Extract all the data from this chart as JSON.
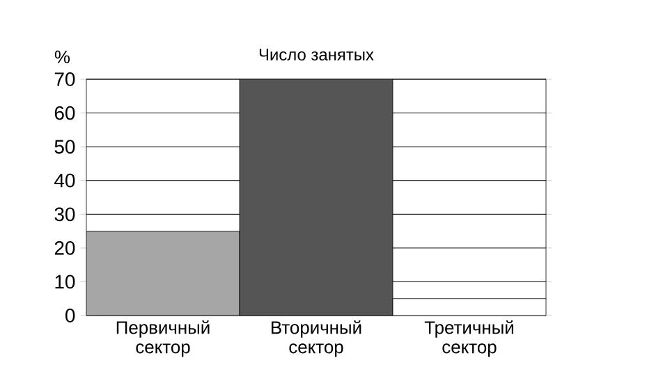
{
  "chart_data": {
    "type": "bar",
    "title": "Число занятых",
    "ylabel": "%",
    "categories": [
      "Первичный сектор",
      "Вторичный сектор",
      "Третичный сектор"
    ],
    "values": [
      25,
      70,
      5
    ],
    "colors": [
      "#a6a6a6",
      "#555555",
      "#ffffff"
    ],
    "ylim": [
      0,
      70
    ],
    "yticks": [
      0,
      10,
      20,
      30,
      40,
      50,
      60,
      70
    ],
    "grid": "y"
  }
}
